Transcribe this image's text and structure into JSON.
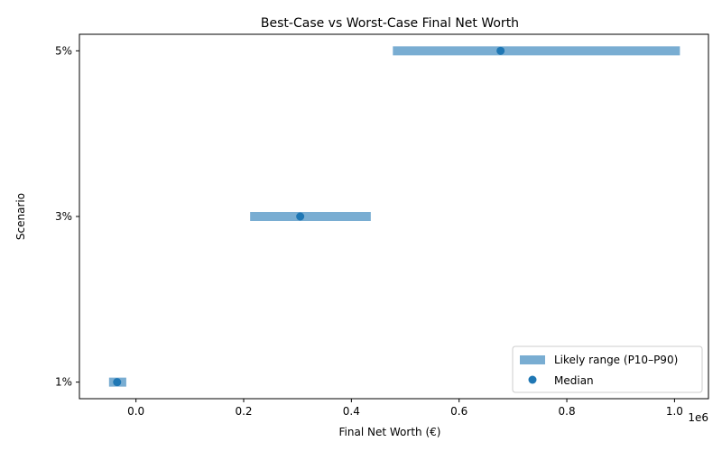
{
  "chart_data": {
    "type": "range",
    "title": "Best-Case vs Worst-Case Final Net Worth",
    "xlabel": "Final Net Worth (€)",
    "ylabel": "Scenario",
    "x_offset_label": "1e6",
    "x_scale": 1000000,
    "xlim": [
      -0.105,
      1.063
    ],
    "x_ticks": [
      0.0,
      0.2,
      0.4,
      0.6,
      0.8,
      1.0
    ],
    "x_tick_labels": [
      "0.0",
      "0.2",
      "0.4",
      "0.6",
      "0.8",
      "1.0"
    ],
    "categories": [
      "1%",
      "3%",
      "5%"
    ],
    "ylim": [
      -0.1,
      2.1
    ],
    "series": [
      {
        "name": "Likely range (P10–P90)",
        "kind": "range",
        "color": "#1f77b4",
        "opacity": 0.6,
        "values": [
          {
            "category": "1%",
            "low": -50000,
            "high": -18000
          },
          {
            "category": "3%",
            "low": 212000,
            "high": 436000
          },
          {
            "category": "5%",
            "low": 477000,
            "high": 1010000
          }
        ]
      },
      {
        "name": "Median",
        "kind": "point",
        "color": "#1f77b4",
        "values": [
          {
            "category": "1%",
            "value": -35000
          },
          {
            "category": "3%",
            "value": 305000
          },
          {
            "category": "5%",
            "value": 677000
          }
        ]
      }
    ],
    "grid": false,
    "legend_position": "lower-right"
  }
}
